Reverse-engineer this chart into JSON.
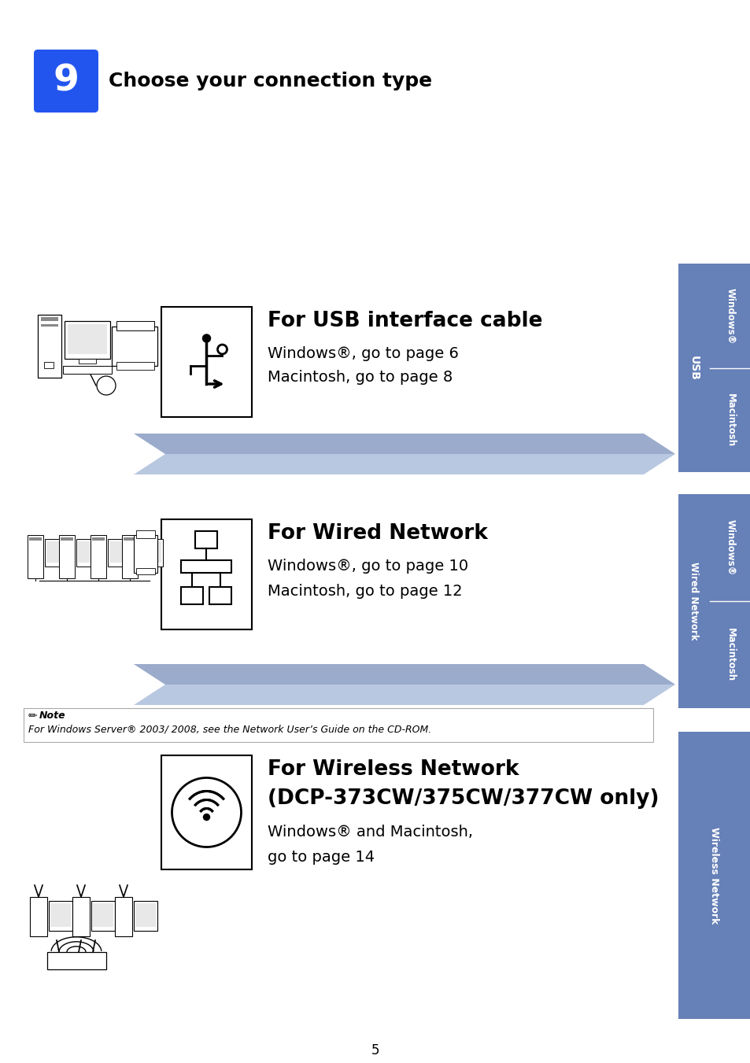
{
  "bg_color": "#ffffff",
  "page_number": "5",
  "step_number": "9",
  "step_bg": "#2255ee",
  "step_title": "Choose your connection type",
  "sidebar_color": "#6680b8",
  "sidebar_dark": "#4a6090",
  "note_text": "For Windows Server® 2003/ 2008, see the Network User’s Guide on the CD-ROM.",
  "usb_title": "For USB interface cable",
  "usb_line1": "Windows®, go to page 6",
  "usb_line2": "Macintosh, go to page 8",
  "wired_title": "For Wired Network",
  "wired_line1": "Windows®, go to page 10",
  "wired_line2": "Macintosh, go to page 12",
  "wireless_title1": "For Wireless Network",
  "wireless_title2": "(DCP-373CW/375CW/377CW only)",
  "wireless_line1": "Windows® and Macintosh,",
  "wireless_line2": "go to page 14",
  "arrow_color": "#7890c0",
  "arrow_tip_color": "#4a6090",
  "usb_sidebar_col1": "USB",
  "usb_sidebar_col2a": "Windows®",
  "usb_sidebar_col2b": "Macintosh",
  "wired_sidebar_col1": "Wired Network",
  "wired_sidebar_col2a": "Windows®",
  "wired_sidebar_col2b": "Macintosh",
  "wireless_sidebar": "Wireless Network"
}
